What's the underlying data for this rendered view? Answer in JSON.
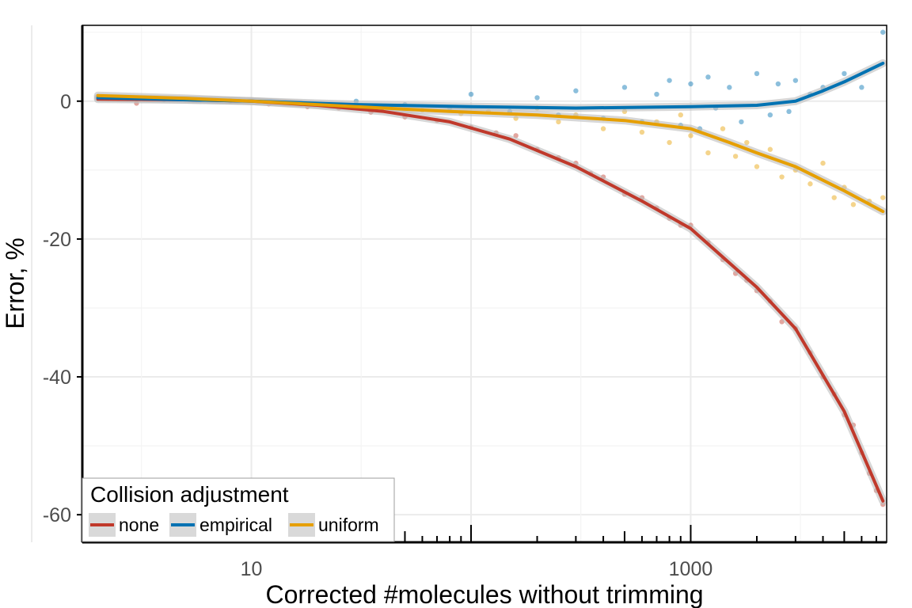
{
  "chart_data": {
    "type": "scatter",
    "xlabel": "Corrected #molecules without trimming",
    "ylabel": "Error, %",
    "x_scale": "log10",
    "xlim": [
      1.7,
      7800
    ],
    "ylim": [
      -64,
      11
    ],
    "x_tick_labels": [
      {
        "value": 10,
        "label": "10"
      },
      {
        "value": 1000,
        "label": "1000"
      }
    ],
    "y_tick_labels": [
      {
        "value": 0,
        "label": "0"
      },
      {
        "value": -20,
        "label": "-20"
      },
      {
        "value": -40,
        "label": "-40"
      },
      {
        "value": -60,
        "label": "-60"
      }
    ],
    "grid": true,
    "legend": {
      "title": "Collision adjustment",
      "position": "bottom-left",
      "entries": [
        {
          "name": "none",
          "color": "#c0392b"
        },
        {
          "name": "empirical",
          "color": "#0072b2"
        },
        {
          "name": "uniform",
          "color": "#e69f00"
        }
      ]
    },
    "series": [
      {
        "name": "none",
        "color": "#c0392b",
        "fit_curve": [
          [
            2,
            0.3
          ],
          [
            5,
            0.2
          ],
          [
            10,
            0
          ],
          [
            20,
            -0.6
          ],
          [
            40,
            -1.5
          ],
          [
            80,
            -3
          ],
          [
            150,
            -5.5
          ],
          [
            300,
            -9.5
          ],
          [
            600,
            -14.5
          ],
          [
            1000,
            -18.5
          ],
          [
            2000,
            -27
          ],
          [
            3000,
            -33
          ],
          [
            5000,
            -45
          ],
          [
            7500,
            -58
          ]
        ],
        "points": [
          [
            2.2,
            0.6
          ],
          [
            3,
            -0.3
          ],
          [
            5,
            0.2
          ],
          [
            8,
            0.1
          ],
          [
            12,
            -0.4
          ],
          [
            18,
            -0.8
          ],
          [
            25,
            -1
          ],
          [
            35,
            -1.6
          ],
          [
            50,
            -2.3
          ],
          [
            70,
            -2.8
          ],
          [
            100,
            -3.8
          ],
          [
            130,
            -4.6
          ],
          [
            160,
            -5
          ],
          [
            200,
            -7
          ],
          [
            250,
            -8.2
          ],
          [
            300,
            -9
          ],
          [
            350,
            -10.5
          ],
          [
            400,
            -11
          ],
          [
            500,
            -13.5
          ],
          [
            600,
            -14
          ],
          [
            700,
            -15.5
          ],
          [
            800,
            -17
          ],
          [
            900,
            -18
          ],
          [
            1000,
            -18
          ],
          [
            1200,
            -20.5
          ],
          [
            1400,
            -23
          ],
          [
            1600,
            -25
          ],
          [
            1800,
            -26
          ],
          [
            2000,
            -27.5
          ],
          [
            2300,
            -29
          ],
          [
            2600,
            -32
          ],
          [
            3000,
            -33
          ],
          [
            3500,
            -36.5
          ],
          [
            4000,
            -40
          ],
          [
            4500,
            -42.5
          ],
          [
            5000,
            -45.5
          ],
          [
            5500,
            -47
          ],
          [
            6000,
            -51
          ],
          [
            6500,
            -54
          ],
          [
            7000,
            -56.5
          ],
          [
            7500,
            -58.5
          ]
        ]
      },
      {
        "name": "empirical",
        "color": "#0072b2",
        "fit_curve": [
          [
            2,
            0.5
          ],
          [
            5,
            0.2
          ],
          [
            10,
            0
          ],
          [
            30,
            -0.5
          ],
          [
            100,
            -0.8
          ],
          [
            300,
            -1
          ],
          [
            1000,
            -0.8
          ],
          [
            2000,
            -0.6
          ],
          [
            3000,
            0
          ],
          [
            4000,
            1.5
          ],
          [
            5000,
            2.8
          ],
          [
            7500,
            5.5
          ]
        ],
        "points": [
          [
            2.2,
            0.5
          ],
          [
            4,
            0.2
          ],
          [
            8,
            0
          ],
          [
            15,
            -0.3
          ],
          [
            30,
            0
          ],
          [
            50,
            -0.5
          ],
          [
            80,
            -1
          ],
          [
            100,
            1
          ],
          [
            150,
            -1.5
          ],
          [
            200,
            0.5
          ],
          [
            250,
            -2
          ],
          [
            300,
            1.5
          ],
          [
            400,
            -2.5
          ],
          [
            500,
            2
          ],
          [
            600,
            -3
          ],
          [
            700,
            1
          ],
          [
            800,
            3
          ],
          [
            900,
            -3.5
          ],
          [
            1000,
            2.5
          ],
          [
            1100,
            -4
          ],
          [
            1200,
            3.5
          ],
          [
            1300,
            -1
          ],
          [
            1500,
            2
          ],
          [
            1700,
            -3
          ],
          [
            2000,
            4
          ],
          [
            2300,
            -2
          ],
          [
            2500,
            2.5
          ],
          [
            2800,
            -1.5
          ],
          [
            3000,
            3
          ],
          [
            3500,
            1
          ],
          [
            4000,
            2
          ],
          [
            5000,
            4
          ],
          [
            6000,
            2
          ],
          [
            7500,
            10
          ]
        ]
      },
      {
        "name": "uniform",
        "color": "#e69f00",
        "fit_curve": [
          [
            2,
            0.8
          ],
          [
            5,
            0.4
          ],
          [
            10,
            0
          ],
          [
            30,
            -0.8
          ],
          [
            80,
            -1.5
          ],
          [
            200,
            -2
          ],
          [
            500,
            -2.8
          ],
          [
            1000,
            -4
          ],
          [
            1500,
            -6
          ],
          [
            2000,
            -7.5
          ],
          [
            3000,
            -9.5
          ],
          [
            5000,
            -13
          ],
          [
            7500,
            -16
          ]
        ],
        "points": [
          [
            2.2,
            0.5
          ],
          [
            4,
            0.3
          ],
          [
            8,
            0.1
          ],
          [
            15,
            -0.3
          ],
          [
            25,
            -0.6
          ],
          [
            40,
            -0.8
          ],
          [
            60,
            -1.3
          ],
          [
            90,
            -1.8
          ],
          [
            120,
            -1.5
          ],
          [
            160,
            -2.5
          ],
          [
            200,
            -1
          ],
          [
            250,
            -3
          ],
          [
            300,
            -2
          ],
          [
            400,
            -4
          ],
          [
            500,
            -1.5
          ],
          [
            600,
            -4.5
          ],
          [
            700,
            -3
          ],
          [
            800,
            -6
          ],
          [
            900,
            -2
          ],
          [
            1000,
            -5
          ],
          [
            1200,
            -7.5
          ],
          [
            1400,
            -4
          ],
          [
            1600,
            -8
          ],
          [
            1800,
            -6
          ],
          [
            2000,
            -9.5
          ],
          [
            2300,
            -7
          ],
          [
            2600,
            -11
          ],
          [
            3000,
            -10
          ],
          [
            3500,
            -12
          ],
          [
            4000,
            -9
          ],
          [
            4500,
            -14
          ],
          [
            5000,
            -12.5
          ],
          [
            5500,
            -15
          ],
          [
            6500,
            -14.5
          ],
          [
            7500,
            -14
          ]
        ]
      }
    ]
  }
}
